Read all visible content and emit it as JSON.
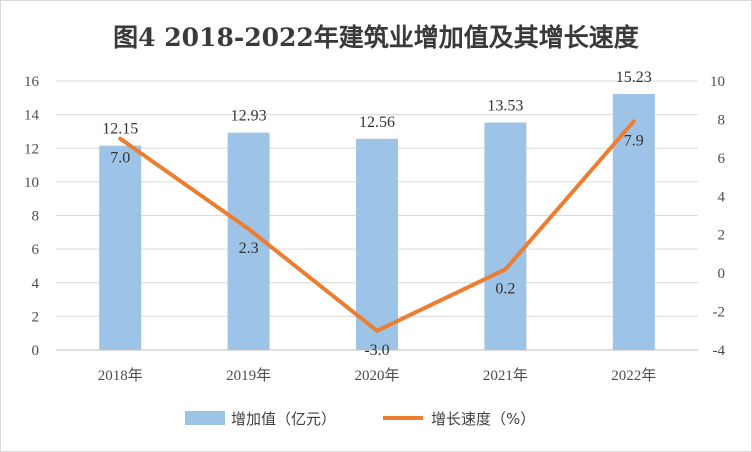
{
  "chart_data": {
    "type": "bar",
    "title": "图4    2018-2022年建筑业增加值及其增长速度",
    "categories": [
      "2018年",
      "2019年",
      "2020年",
      "2021年",
      "2022年"
    ],
    "series": [
      {
        "name": "增加值（亿元）",
        "type": "bar",
        "axis": "left",
        "values": [
          12.15,
          12.93,
          12.56,
          13.53,
          15.23
        ],
        "labels": [
          "12.15",
          "12.93",
          "12.56",
          "13.53",
          "15.23"
        ],
        "color": "#9dc3e6"
      },
      {
        "name": "增长速度（%）",
        "type": "line",
        "axis": "right",
        "values": [
          7.0,
          2.3,
          -3.0,
          0.2,
          7.9
        ],
        "labels": [
          "7.0",
          "2.3",
          "-3.0",
          "0.2",
          "7.9"
        ],
        "color": "#ed7d31"
      }
    ],
    "y_left": {
      "min": 0,
      "max": 16,
      "step": 2,
      "ticks": [
        "0",
        "2",
        "4",
        "6",
        "8",
        "10",
        "12",
        "14",
        "16"
      ]
    },
    "y_right": {
      "min": -4,
      "max": 10,
      "step": 2,
      "ticks": [
        "-4",
        "-2",
        "0",
        "2",
        "4",
        "6",
        "8",
        "10"
      ]
    },
    "grid": true,
    "legend_position": "bottom"
  }
}
